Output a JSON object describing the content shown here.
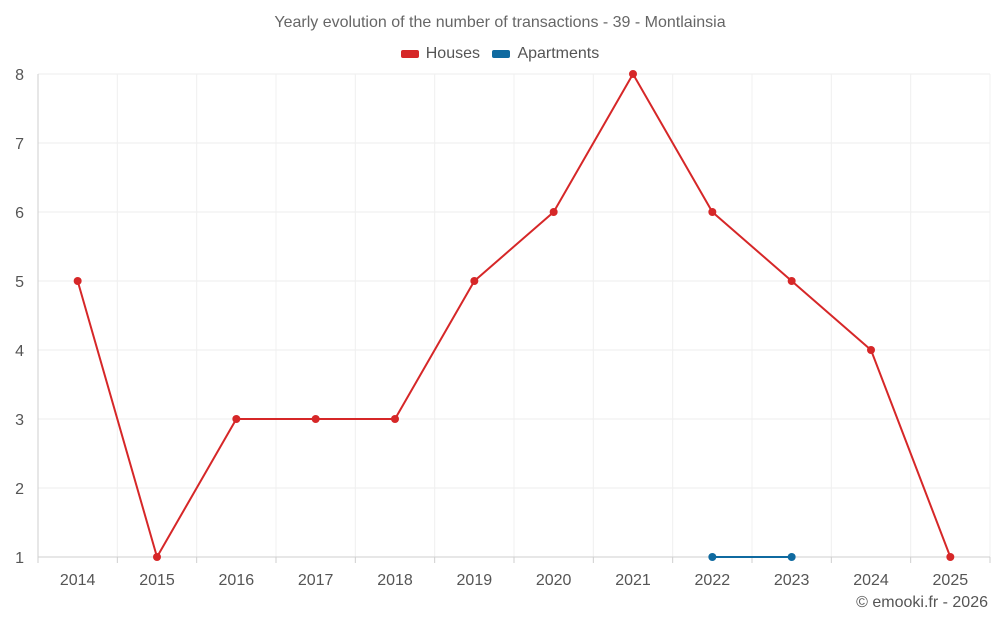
{
  "chart_data": {
    "type": "line",
    "title": "Yearly evolution of the number of transactions - 39 - Montlainsia",
    "categories": [
      "2014",
      "2015",
      "2016",
      "2017",
      "2018",
      "2019",
      "2020",
      "2021",
      "2022",
      "2023",
      "2024",
      "2025"
    ],
    "series": [
      {
        "name": "Houses",
        "color": "#d62728",
        "values": [
          5,
          1,
          3,
          3,
          3,
          5,
          6,
          8,
          6,
          5,
          4,
          1
        ]
      },
      {
        "name": "Apartments",
        "color": "#0f6aa0",
        "values": [
          null,
          null,
          null,
          null,
          null,
          null,
          null,
          null,
          1,
          1,
          null,
          null
        ]
      }
    ],
    "ylim": [
      1,
      8
    ],
    "yticks": [
      1,
      2,
      3,
      4,
      5,
      6,
      7,
      8
    ],
    "grid": true,
    "legend_position": "top-center"
  },
  "credit": "© emooki.fr - 2026"
}
